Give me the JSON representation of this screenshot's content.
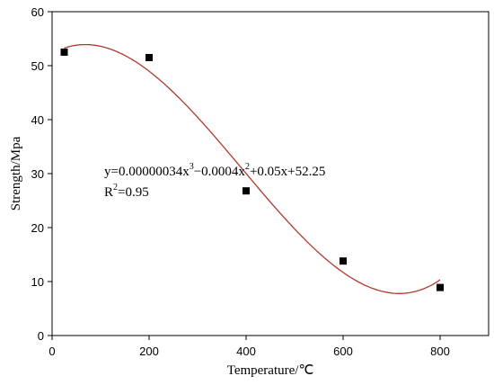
{
  "chart_data": {
    "type": "scatter",
    "title": "",
    "xlabel": "Temperature/℃",
    "ylabel": "Strength/Mpa",
    "xlim": [
      0,
      900
    ],
    "ylim": [
      0,
      60
    ],
    "xticks": [
      0,
      200,
      400,
      600,
      800
    ],
    "yticks": [
      0,
      10,
      20,
      30,
      40,
      50,
      60
    ],
    "grid": false,
    "legend": "none",
    "series": [
      {
        "type": "scatter",
        "marker": "square",
        "color": "#000000",
        "x": [
          25,
          200,
          400,
          600,
          800
        ],
        "y": [
          52.5,
          51.5,
          26.8,
          13.8,
          8.9
        ]
      },
      {
        "type": "line",
        "style": "fit",
        "color": "#b03a2e",
        "coefficients": {
          "a3": 3.4e-07,
          "a2": -0.0004,
          "a1": 0.05,
          "a0": 52.25
        },
        "x_range": [
          25,
          800
        ]
      }
    ],
    "annotations": {
      "equation": {
        "prefix": "y=0.00000034x",
        "exp1": "3",
        "mid": "−0.0004x",
        "exp2": "2",
        "suffix": "+0.05x+52.25"
      },
      "r2": {
        "prefix": "R",
        "exp": "2",
        "suffix": "=0.95"
      }
    }
  }
}
